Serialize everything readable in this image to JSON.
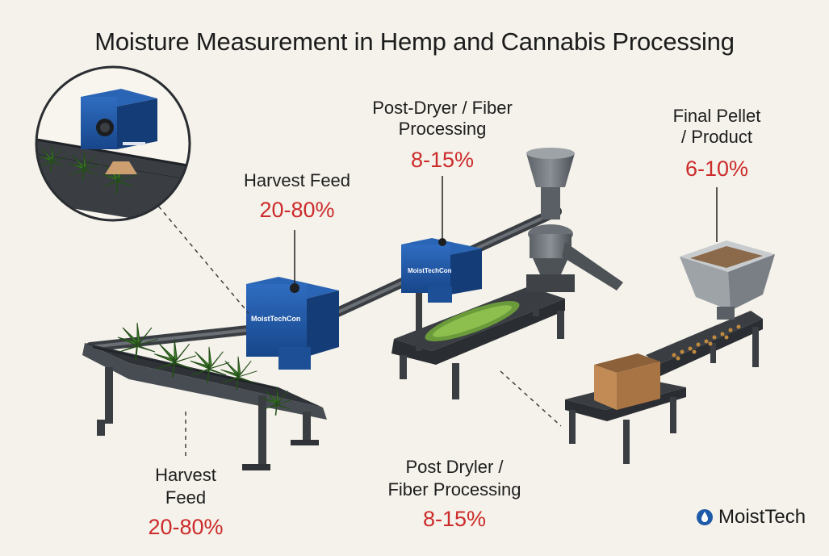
{
  "title": "Moisture Measurement in Hemp and Cannabis Processing",
  "sensor_brand": "MoistTechCon",
  "callouts": {
    "harvest_feed_top": {
      "label": "Harvest Feed",
      "value": "20-80%"
    },
    "post_dryer_top": {
      "label_line1": "Post-Dryer / Fiber",
      "label_line2": "Processing",
      "value": "8-15%"
    },
    "final_pellet": {
      "label_line1": "Final Pellet",
      "label_line2": "/ Product",
      "value": "6-10%"
    },
    "harvest_feed_bottom": {
      "label_line1": "Harvest",
      "label_line2": "Feed",
      "value": "20-80%"
    },
    "post_dryer_bottom": {
      "label_line1": "Post Dryler /",
      "label_line2": "Fiber Processing",
      "value": "8-15%"
    }
  },
  "brand": {
    "name": "MoistTech"
  },
  "colors": {
    "background": "#f4f2ea",
    "sensor_blue": "#1f5aa8",
    "value_red": "#cc2b2b",
    "conveyor_dark": "#3c4045",
    "leaf_green": "#3f7f2c"
  }
}
